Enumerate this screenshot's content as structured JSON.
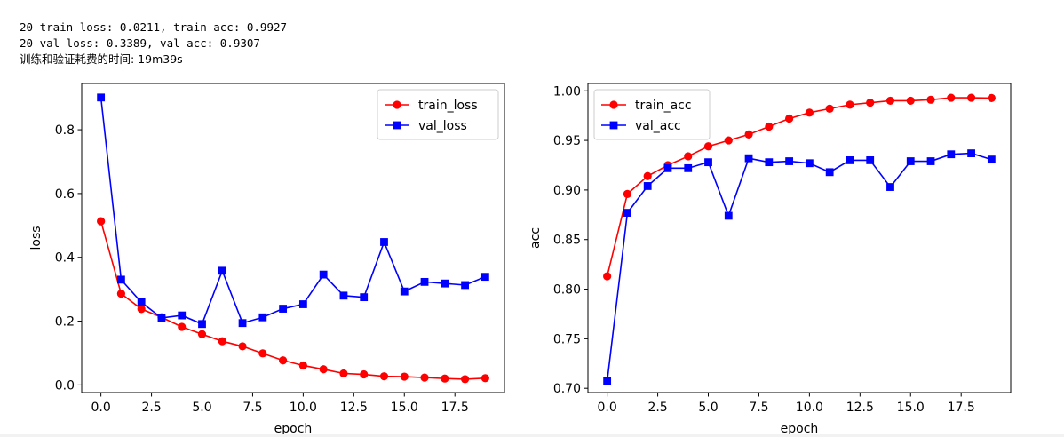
{
  "output": {
    "lines": [
      "----------",
      "20 train loss: 0.0211, train acc: 0.9927",
      "20 val loss: 0.3389, val acc: 0.9307",
      "训练和验证耗费的时间: 19m39s"
    ]
  },
  "chart_data": [
    {
      "type": "line",
      "title": "",
      "xlabel": "epoch",
      "ylabel": "loss",
      "x": [
        0,
        1,
        2,
        3,
        4,
        5,
        6,
        7,
        8,
        9,
        10,
        11,
        12,
        13,
        14,
        15,
        16,
        17,
        18,
        19
      ],
      "xlim": [
        -0.95,
        19.95
      ],
      "ylim": [
        -0.024,
        0.945
      ],
      "xticks": [
        0.0,
        2.5,
        5.0,
        7.5,
        10.0,
        12.5,
        15.0,
        17.5
      ],
      "xtick_labels": [
        "0.0",
        "2.5",
        "5.0",
        "7.5",
        "10.0",
        "12.5",
        "15.0",
        "17.5"
      ],
      "yticks": [
        0.0,
        0.2,
        0.4,
        0.6,
        0.8
      ],
      "ytick_labels": [
        "0.0",
        "0.2",
        "0.4",
        "0.6",
        "0.8"
      ],
      "grid": false,
      "legend_position": "top-right",
      "series": [
        {
          "name": "train_loss",
          "color": "#ff0000",
          "marker": "circle",
          "values": [
            0.513,
            0.286,
            0.238,
            0.212,
            0.182,
            0.159,
            0.137,
            0.121,
            0.099,
            0.077,
            0.061,
            0.049,
            0.036,
            0.033,
            0.027,
            0.026,
            0.023,
            0.02,
            0.018,
            0.0211
          ]
        },
        {
          "name": "val_loss",
          "color": "#0000ff",
          "marker": "square",
          "values": [
            0.901,
            0.33,
            0.259,
            0.21,
            0.218,
            0.191,
            0.358,
            0.194,
            0.212,
            0.239,
            0.253,
            0.346,
            0.28,
            0.275,
            0.448,
            0.293,
            0.323,
            0.318,
            0.313,
            0.3389
          ]
        }
      ]
    },
    {
      "type": "line",
      "title": "",
      "xlabel": "epoch",
      "ylabel": "acc",
      "x": [
        0,
        1,
        2,
        3,
        4,
        5,
        6,
        7,
        8,
        9,
        10,
        11,
        12,
        13,
        14,
        15,
        16,
        17,
        18,
        19
      ],
      "xlim": [
        -0.95,
        19.95
      ],
      "ylim": [
        0.6957,
        1.0074
      ],
      "xticks": [
        0.0,
        2.5,
        5.0,
        7.5,
        10.0,
        12.5,
        15.0,
        17.5
      ],
      "xtick_labels": [
        "0.0",
        "2.5",
        "5.0",
        "7.5",
        "10.0",
        "12.5",
        "15.0",
        "17.5"
      ],
      "yticks": [
        0.7,
        0.75,
        0.8,
        0.85,
        0.9,
        0.95,
        1.0
      ],
      "ytick_labels": [
        "0.70",
        "0.75",
        "0.80",
        "0.85",
        "0.90",
        "0.95",
        "1.00"
      ],
      "grid": false,
      "legend_position": "top-left",
      "series": [
        {
          "name": "train_acc",
          "color": "#ff0000",
          "marker": "circle",
          "values": [
            0.813,
            0.896,
            0.914,
            0.925,
            0.934,
            0.944,
            0.95,
            0.956,
            0.964,
            0.972,
            0.978,
            0.982,
            0.986,
            0.988,
            0.99,
            0.99,
            0.991,
            0.993,
            0.993,
            0.9927
          ]
        },
        {
          "name": "val_acc",
          "color": "#0000ff",
          "marker": "square",
          "values": [
            0.707,
            0.877,
            0.904,
            0.922,
            0.922,
            0.928,
            0.874,
            0.932,
            0.928,
            0.929,
            0.927,
            0.918,
            0.93,
            0.93,
            0.903,
            0.929,
            0.929,
            0.936,
            0.937,
            0.9307
          ]
        }
      ]
    }
  ]
}
